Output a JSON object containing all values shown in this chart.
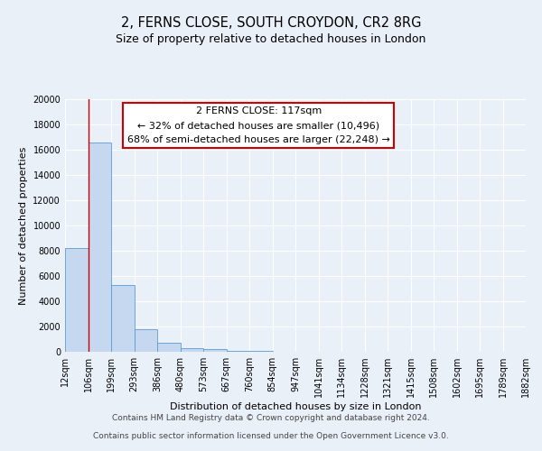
{
  "title": "2, FERNS CLOSE, SOUTH CROYDON, CR2 8RG",
  "subtitle": "Size of property relative to detached houses in London",
  "xlabel": "Distribution of detached houses by size in London",
  "ylabel": "Number of detached properties",
  "bin_labels": [
    "12sqm",
    "106sqm",
    "199sqm",
    "293sqm",
    "386sqm",
    "480sqm",
    "573sqm",
    "667sqm",
    "760sqm",
    "854sqm",
    "947sqm",
    "1041sqm",
    "1134sqm",
    "1228sqm",
    "1321sqm",
    "1415sqm",
    "1508sqm",
    "1602sqm",
    "1695sqm",
    "1789sqm",
    "1882sqm"
  ],
  "bar_values": [
    8200,
    16600,
    5300,
    1800,
    750,
    300,
    200,
    100,
    100,
    0,
    0,
    0,
    0,
    0,
    0,
    0,
    0,
    0,
    0,
    0
  ],
  "bar_color": "#c5d8f0",
  "bar_edge_color": "#5b9bd5",
  "property_line_x": 1,
  "property_line_color": "#cc0000",
  "ylim": [
    0,
    20000
  ],
  "yticks": [
    0,
    2000,
    4000,
    6000,
    8000,
    10000,
    12000,
    14000,
    16000,
    18000,
    20000
  ],
  "annotation_title": "2 FERNS CLOSE: 117sqm",
  "annotation_line1": "← 32% of detached houses are smaller (10,496)",
  "annotation_line2": "68% of semi-detached houses are larger (22,248) →",
  "annotation_box_color": "#ffffff",
  "annotation_box_edge": "#cc0000",
  "footer_line1": "Contains HM Land Registry data © Crown copyright and database right 2024.",
  "footer_line2": "Contains public sector information licensed under the Open Government Licence v3.0.",
  "bg_color": "#eaf0f8",
  "plot_bg_color": "#eaf0f8",
  "grid_color": "#ffffff",
  "title_fontsize": 10.5,
  "subtitle_fontsize": 9,
  "axis_label_fontsize": 8,
  "tick_fontsize": 7,
  "footer_fontsize": 6.5,
  "annotation_fontsize": 8
}
